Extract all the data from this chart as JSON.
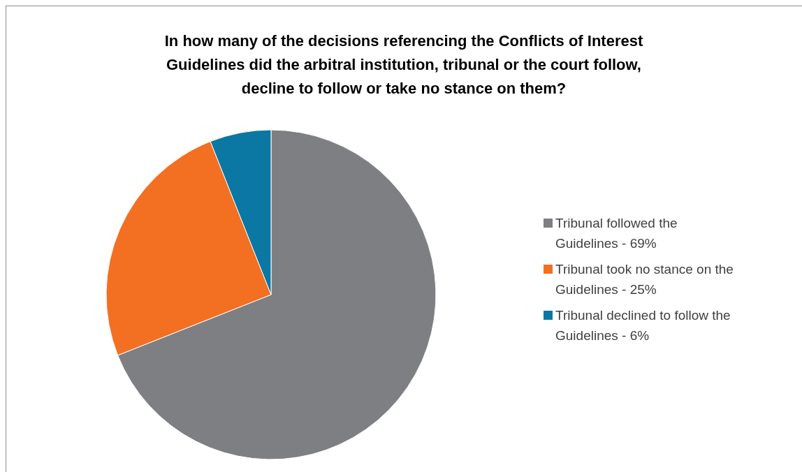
{
  "chart_data": {
    "type": "pie",
    "title": "In how many of the decisions referencing the Conflicts of Interest Guidelines did the arbitral institution, tribunal or the court follow, decline to follow or take no stance on them?",
    "categories": [
      "Tribunal followed the Guidelines - 69%",
      "Tribunal took no stance on the Guidelines - 25%",
      "Tribunal declined to follow the Guidelines - 6%"
    ],
    "values": [
      69,
      25,
      6
    ],
    "colors": [
      "#7e7f83",
      "#f36f21",
      "#0b77a3"
    ],
    "legend": "right"
  }
}
